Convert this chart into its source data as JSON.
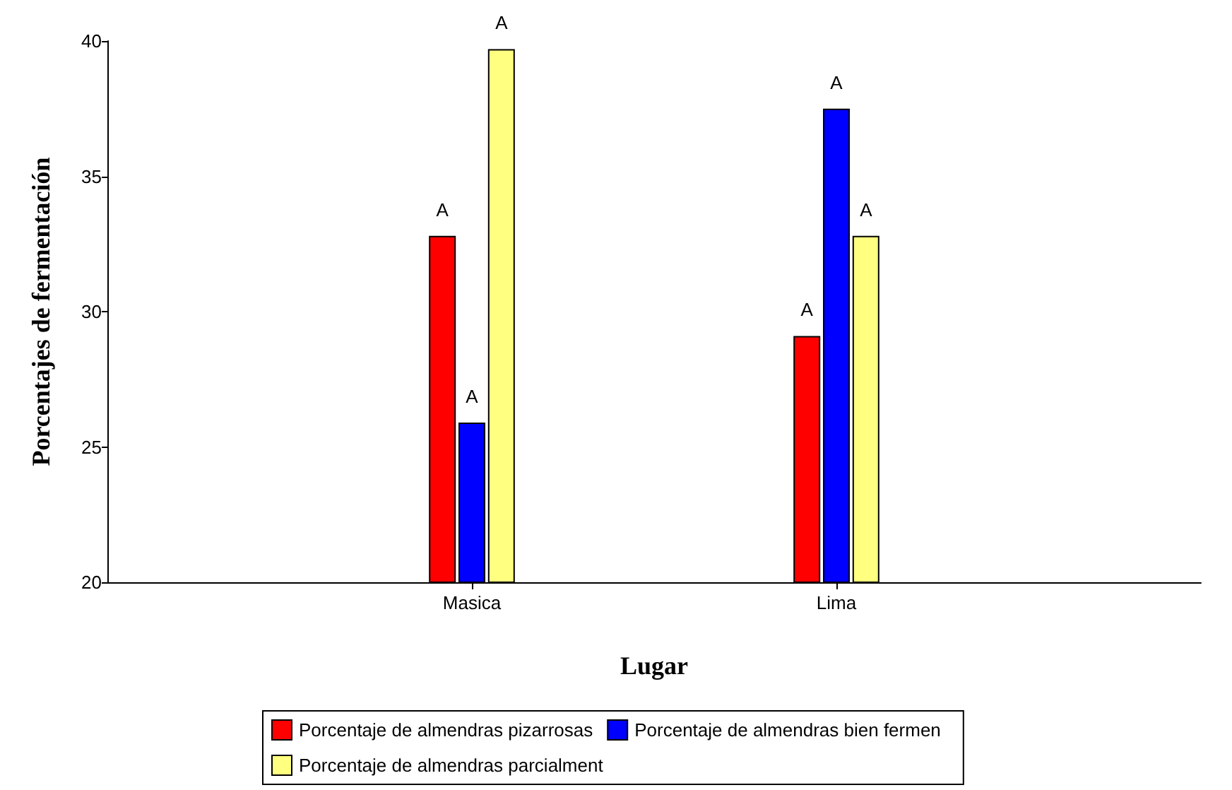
{
  "chart_data": {
    "type": "bar",
    "xlabel": "Lugar",
    "ylabel": "Porcentajes de fermentación",
    "categories": [
      "Masica",
      "Lima"
    ],
    "series": [
      {
        "name": "Porcentaje de almendras pizarrosas",
        "color": "#ff0000",
        "values": [
          32.8,
          29.1
        ],
        "value_labels": [
          "A",
          "A"
        ]
      },
      {
        "name": "Porcentaje de almendras bien fermen",
        "color": "#0000ff",
        "values": [
          25.9,
          37.5
        ],
        "value_labels": [
          "A",
          "A"
        ]
      },
      {
        "name": "Porcentaje de almendras parcialment",
        "color": "#ffff80",
        "values": [
          39.7,
          32.8
        ],
        "value_labels": [
          "A",
          "A"
        ]
      }
    ],
    "ylim": [
      20,
      40
    ],
    "yticks": [
      20,
      25,
      30,
      35,
      40
    ],
    "grid": false,
    "legend": "bottom"
  }
}
